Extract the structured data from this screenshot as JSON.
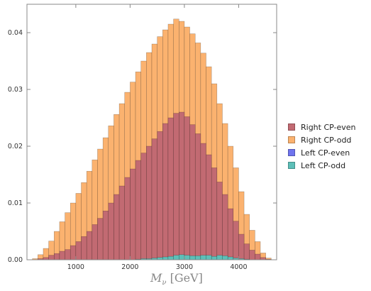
{
  "chart_data": {
    "type": "bar",
    "stacked": false,
    "overlay": true,
    "xlabel": {
      "symbol": "M",
      "subscript": "ν",
      "unit": "[GeV]"
    },
    "ylabel": "",
    "xlim": [
      100,
      4700
    ],
    "ylim": [
      0,
      0.045
    ],
    "x_ticks": [
      1000,
      2000,
      3000,
      4000
    ],
    "y_ticks": [
      0.0,
      0.01,
      0.02,
      0.03,
      0.04
    ],
    "y_tick_labels": [
      "0.00",
      "0.01",
      "0.02",
      "0.03",
      "0.04"
    ],
    "bin_width": 100,
    "bin_starts": [
      200,
      300,
      400,
      500,
      600,
      700,
      800,
      900,
      1000,
      1100,
      1200,
      1300,
      1400,
      1500,
      1600,
      1700,
      1800,
      1900,
      2000,
      2100,
      2200,
      2300,
      2400,
      2500,
      2600,
      2700,
      2800,
      2900,
      3000,
      3100,
      3200,
      3300,
      3400,
      3500,
      3600,
      3700,
      3800,
      3900,
      4000,
      4100,
      4200,
      4300,
      4400,
      4500
    ],
    "grid": false,
    "legend_position": "right",
    "series": [
      {
        "name": "Right CP-odd",
        "color": "#fbb26f",
        "values": [
          0.0002,
          0.0009,
          0.002,
          0.0033,
          0.005,
          0.0067,
          0.0083,
          0.01,
          0.0117,
          0.0136,
          0.0156,
          0.0176,
          0.0195,
          0.0215,
          0.0236,
          0.0256,
          0.0275,
          0.0295,
          0.0313,
          0.0331,
          0.035,
          0.0365,
          0.038,
          0.0393,
          0.0405,
          0.0415,
          0.0424,
          0.042,
          0.041,
          0.0398,
          0.0382,
          0.0364,
          0.034,
          0.031,
          0.0275,
          0.024,
          0.02,
          0.0162,
          0.012,
          0.008,
          0.0052,
          0.0032,
          0.0012,
          0.0003
        ]
      },
      {
        "name": "Right CP-even",
        "color": "#c26a72",
        "values": [
          0.0,
          0.0002,
          0.0004,
          0.0008,
          0.0011,
          0.0015,
          0.0018,
          0.0025,
          0.0032,
          0.0041,
          0.005,
          0.0062,
          0.0073,
          0.0086,
          0.01,
          0.0115,
          0.013,
          0.0145,
          0.016,
          0.0175,
          0.0188,
          0.02,
          0.0213,
          0.0226,
          0.024,
          0.025,
          0.0258,
          0.026,
          0.0252,
          0.0238,
          0.0222,
          0.0205,
          0.0185,
          0.0162,
          0.0137,
          0.0115,
          0.009,
          0.0068,
          0.0045,
          0.0028,
          0.0017,
          0.001,
          0.0004,
          0.0001
        ]
      },
      {
        "name": "Left CP-even",
        "color": "#6f74ee",
        "values": [
          0,
          0,
          0,
          0,
          0,
          0,
          0,
          0,
          0,
          0,
          0,
          0,
          0,
          0,
          0,
          0,
          0,
          0,
          0,
          0,
          0,
          0,
          0,
          0,
          0,
          0.0003,
          0.0005,
          0.0006,
          0.0004,
          0.0003,
          0.0004,
          0.0005,
          0.0005,
          0.0004,
          0.0005,
          0.0004,
          0.0003,
          0.0002,
          0.0001,
          0,
          0,
          0,
          0,
          0
        ]
      },
      {
        "name": "Left CP-odd",
        "color": "#5dbfb8",
        "values": [
          0,
          0,
          0,
          0,
          0,
          0,
          0,
          0,
          0,
          0,
          0,
          0,
          0,
          0,
          0,
          0,
          0,
          0,
          0,
          0.0001,
          0.0002,
          0.0002,
          0.0003,
          0.0004,
          0.0005,
          0.0006,
          0.0008,
          0.0009,
          0.0008,
          0.0007,
          0.0007,
          0.0008,
          0.0008,
          0.0006,
          0.0008,
          0.0007,
          0.0005,
          0.0003,
          0.0002,
          0.0001,
          0,
          0,
          0,
          0
        ]
      }
    ]
  },
  "legend": [
    {
      "label": "Right CP-even",
      "color": "#c26a72"
    },
    {
      "label": "Right CP-odd",
      "color": "#fbb26f"
    },
    {
      "label": "Left CP-even",
      "color": "#6f74ee"
    },
    {
      "label": "Left CP-odd",
      "color": "#5dbfb8"
    }
  ]
}
